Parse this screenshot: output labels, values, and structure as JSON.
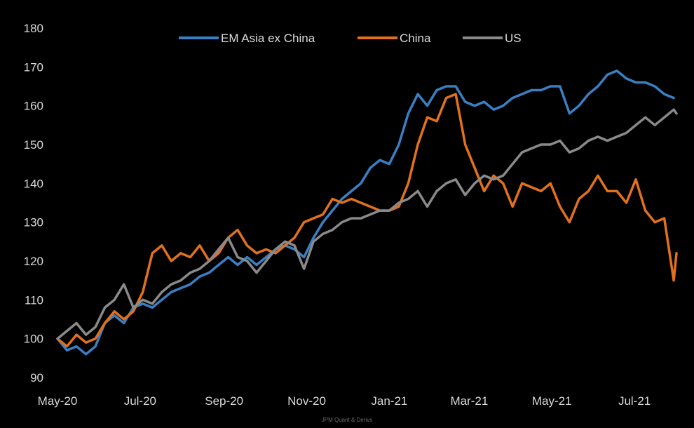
{
  "chart_data": {
    "type": "line",
    "title": "",
    "xlabel": "",
    "ylabel": "",
    "ylim": [
      90,
      180
    ],
    "yticks": [
      90,
      100,
      110,
      120,
      130,
      140,
      150,
      160,
      170,
      180
    ],
    "xticks": [
      "May-20",
      "Jul-20",
      "Sep-20",
      "Nov-20",
      "Jan-21",
      "Mar-21",
      "May-21",
      "Jul-21"
    ],
    "xrange": [
      "2020-05-01",
      "2021-08-01"
    ],
    "grid": false,
    "legend": "top-center",
    "background": "#000000",
    "series": [
      {
        "name": "EM Asia ex China",
        "color": "#3a7fc4",
        "points": [
          [
            "2020-05-01",
            100
          ],
          [
            "2020-05-08",
            97
          ],
          [
            "2020-05-15",
            98
          ],
          [
            "2020-05-22",
            96
          ],
          [
            "2020-05-29",
            98
          ],
          [
            "2020-06-05",
            104
          ],
          [
            "2020-06-12",
            106
          ],
          [
            "2020-06-19",
            104
          ],
          [
            "2020-06-26",
            108
          ],
          [
            "2020-07-03",
            109
          ],
          [
            "2020-07-10",
            108
          ],
          [
            "2020-07-17",
            110
          ],
          [
            "2020-07-24",
            112
          ],
          [
            "2020-07-31",
            113
          ],
          [
            "2020-08-07",
            114
          ],
          [
            "2020-08-14",
            116
          ],
          [
            "2020-08-21",
            117
          ],
          [
            "2020-08-28",
            119
          ],
          [
            "2020-09-04",
            121
          ],
          [
            "2020-09-11",
            119
          ],
          [
            "2020-09-18",
            121
          ],
          [
            "2020-09-25",
            119
          ],
          [
            "2020-10-02",
            121
          ],
          [
            "2020-10-09",
            123
          ],
          [
            "2020-10-16",
            124
          ],
          [
            "2020-10-23",
            123
          ],
          [
            "2020-10-30",
            121
          ],
          [
            "2020-11-06",
            126
          ],
          [
            "2020-11-13",
            130
          ],
          [
            "2020-11-20",
            133
          ],
          [
            "2020-11-27",
            136
          ],
          [
            "2020-12-04",
            138
          ],
          [
            "2020-12-11",
            140
          ],
          [
            "2020-12-18",
            144
          ],
          [
            "2020-12-25",
            146
          ],
          [
            "2021-01-01",
            145
          ],
          [
            "2021-01-08",
            150
          ],
          [
            "2021-01-15",
            158
          ],
          [
            "2021-01-22",
            163
          ],
          [
            "2021-01-29",
            160
          ],
          [
            "2021-02-05",
            164
          ],
          [
            "2021-02-12",
            165
          ],
          [
            "2021-02-19",
            165
          ],
          [
            "2021-02-26",
            161
          ],
          [
            "2021-03-05",
            160
          ],
          [
            "2021-03-12",
            161
          ],
          [
            "2021-03-19",
            159
          ],
          [
            "2021-03-26",
            160
          ],
          [
            "2021-04-02",
            162
          ],
          [
            "2021-04-09",
            163
          ],
          [
            "2021-04-16",
            164
          ],
          [
            "2021-04-23",
            164
          ],
          [
            "2021-04-30",
            165
          ],
          [
            "2021-05-07",
            165
          ],
          [
            "2021-05-14",
            158
          ],
          [
            "2021-05-21",
            160
          ],
          [
            "2021-05-28",
            163
          ],
          [
            "2021-06-04",
            165
          ],
          [
            "2021-06-11",
            168
          ],
          [
            "2021-06-18",
            169
          ],
          [
            "2021-06-25",
            167
          ],
          [
            "2021-07-02",
            166
          ],
          [
            "2021-07-09",
            166
          ],
          [
            "2021-07-16",
            165
          ],
          [
            "2021-07-23",
            163
          ],
          [
            "2021-07-30",
            162
          ]
        ]
      },
      {
        "name": "China",
        "color": "#e2711d",
        "points": [
          [
            "2020-05-01",
            100
          ],
          [
            "2020-05-08",
            98
          ],
          [
            "2020-05-15",
            101
          ],
          [
            "2020-05-22",
            99
          ],
          [
            "2020-05-29",
            100
          ],
          [
            "2020-06-05",
            104
          ],
          [
            "2020-06-12",
            107
          ],
          [
            "2020-06-19",
            105
          ],
          [
            "2020-06-26",
            107
          ],
          [
            "2020-07-03",
            112
          ],
          [
            "2020-07-10",
            122
          ],
          [
            "2020-07-17",
            124
          ],
          [
            "2020-07-24",
            120
          ],
          [
            "2020-07-31",
            122
          ],
          [
            "2020-08-07",
            121
          ],
          [
            "2020-08-14",
            124
          ],
          [
            "2020-08-21",
            120
          ],
          [
            "2020-08-28",
            122
          ],
          [
            "2020-09-04",
            126
          ],
          [
            "2020-09-11",
            128
          ],
          [
            "2020-09-18",
            124
          ],
          [
            "2020-09-25",
            122
          ],
          [
            "2020-10-02",
            123
          ],
          [
            "2020-10-09",
            122
          ],
          [
            "2020-10-16",
            124
          ],
          [
            "2020-10-23",
            126
          ],
          [
            "2020-10-30",
            130
          ],
          [
            "2020-11-06",
            131
          ],
          [
            "2020-11-13",
            132
          ],
          [
            "2020-11-20",
            136
          ],
          [
            "2020-11-27",
            135
          ],
          [
            "2020-12-04",
            136
          ],
          [
            "2020-12-11",
            135
          ],
          [
            "2020-12-18",
            134
          ],
          [
            "2020-12-25",
            133
          ],
          [
            "2021-01-01",
            133
          ],
          [
            "2021-01-08",
            134
          ],
          [
            "2021-01-15",
            140
          ],
          [
            "2021-01-22",
            150
          ],
          [
            "2021-01-29",
            157
          ],
          [
            "2021-02-05",
            156
          ],
          [
            "2021-02-12",
            162
          ],
          [
            "2021-02-19",
            163
          ],
          [
            "2021-02-26",
            150
          ],
          [
            "2021-03-05",
            144
          ],
          [
            "2021-03-12",
            138
          ],
          [
            "2021-03-19",
            142
          ],
          [
            "2021-03-26",
            140
          ],
          [
            "2021-04-02",
            134
          ],
          [
            "2021-04-09",
            140
          ],
          [
            "2021-04-16",
            139
          ],
          [
            "2021-04-23",
            138
          ],
          [
            "2021-04-30",
            140
          ],
          [
            "2021-05-07",
            134
          ],
          [
            "2021-05-14",
            130
          ],
          [
            "2021-05-21",
            136
          ],
          [
            "2021-05-28",
            138
          ],
          [
            "2021-06-04",
            142
          ],
          [
            "2021-06-11",
            138
          ],
          [
            "2021-06-18",
            138
          ],
          [
            "2021-06-25",
            135
          ],
          [
            "2021-07-02",
            141
          ],
          [
            "2021-07-09",
            133
          ],
          [
            "2021-07-16",
            130
          ],
          [
            "2021-07-23",
            131
          ],
          [
            "2021-07-30",
            115
          ],
          [
            "2021-08-01",
            122
          ]
        ]
      },
      {
        "name": "US",
        "color": "#8a8a8a",
        "points": [
          [
            "2020-05-01",
            100
          ],
          [
            "2020-05-08",
            102
          ],
          [
            "2020-05-15",
            104
          ],
          [
            "2020-05-22",
            101
          ],
          [
            "2020-05-29",
            103
          ],
          [
            "2020-06-05",
            108
          ],
          [
            "2020-06-12",
            110
          ],
          [
            "2020-06-19",
            114
          ],
          [
            "2020-06-26",
            108
          ],
          [
            "2020-07-03",
            110
          ],
          [
            "2020-07-10",
            109
          ],
          [
            "2020-07-17",
            112
          ],
          [
            "2020-07-24",
            114
          ],
          [
            "2020-07-31",
            115
          ],
          [
            "2020-08-07",
            117
          ],
          [
            "2020-08-14",
            118
          ],
          [
            "2020-08-21",
            120
          ],
          [
            "2020-08-28",
            123
          ],
          [
            "2020-09-04",
            126
          ],
          [
            "2020-09-11",
            121
          ],
          [
            "2020-09-18",
            120
          ],
          [
            "2020-09-25",
            117
          ],
          [
            "2020-10-02",
            120
          ],
          [
            "2020-10-09",
            123
          ],
          [
            "2020-10-16",
            125
          ],
          [
            "2020-10-23",
            124
          ],
          [
            "2020-10-30",
            118
          ],
          [
            "2020-11-06",
            125
          ],
          [
            "2020-11-13",
            127
          ],
          [
            "2020-11-20",
            128
          ],
          [
            "2020-11-27",
            130
          ],
          [
            "2020-12-04",
            131
          ],
          [
            "2020-12-11",
            131
          ],
          [
            "2020-12-18",
            132
          ],
          [
            "2020-12-25",
            133
          ],
          [
            "2021-01-01",
            133
          ],
          [
            "2021-01-08",
            135
          ],
          [
            "2021-01-15",
            136
          ],
          [
            "2021-01-22",
            138
          ],
          [
            "2021-01-29",
            134
          ],
          [
            "2021-02-05",
            138
          ],
          [
            "2021-02-12",
            140
          ],
          [
            "2021-02-19",
            141
          ],
          [
            "2021-02-26",
            137
          ],
          [
            "2021-03-05",
            140
          ],
          [
            "2021-03-12",
            142
          ],
          [
            "2021-03-19",
            141
          ],
          [
            "2021-03-26",
            142
          ],
          [
            "2021-04-02",
            145
          ],
          [
            "2021-04-09",
            148
          ],
          [
            "2021-04-16",
            149
          ],
          [
            "2021-04-23",
            150
          ],
          [
            "2021-04-30",
            150
          ],
          [
            "2021-05-07",
            151
          ],
          [
            "2021-05-14",
            148
          ],
          [
            "2021-05-21",
            149
          ],
          [
            "2021-05-28",
            151
          ],
          [
            "2021-06-04",
            152
          ],
          [
            "2021-06-11",
            151
          ],
          [
            "2021-06-18",
            152
          ],
          [
            "2021-06-25",
            153
          ],
          [
            "2021-07-02",
            155
          ],
          [
            "2021-07-09",
            157
          ],
          [
            "2021-07-16",
            155
          ],
          [
            "2021-07-23",
            157
          ],
          [
            "2021-07-30",
            159
          ],
          [
            "2021-08-01",
            158
          ]
        ]
      }
    ]
  },
  "footer": {
    "credit": "JPM Quant & Derivs"
  }
}
